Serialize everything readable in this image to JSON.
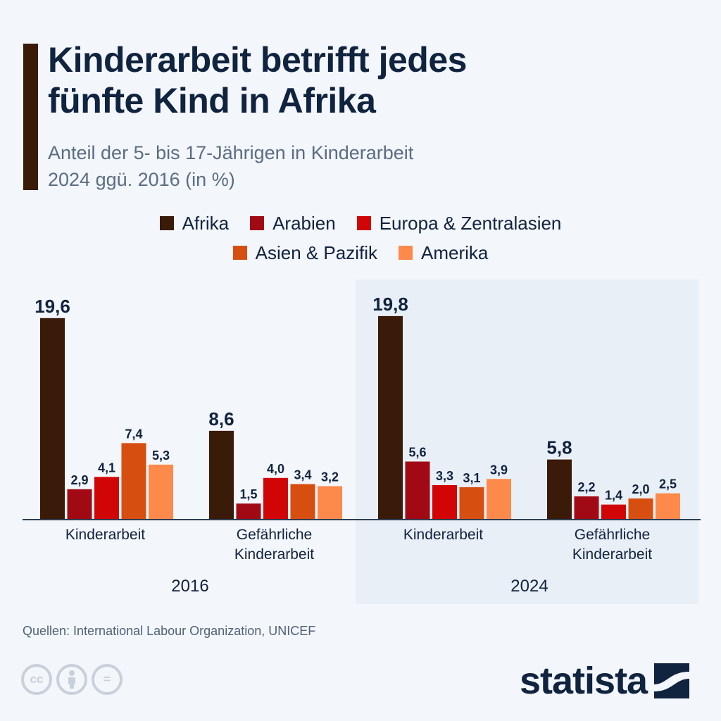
{
  "header": {
    "title_line1": "Kinderarbeit betrifft jedes",
    "title_line2": "fünfte Kind in Afrika",
    "subtitle_line1": "Anteil der 5- bis 17-Jährigen in Kinderarbeit",
    "subtitle_line2": "2024 ggü. 2016 (in %)"
  },
  "legend": [
    {
      "label": "Afrika",
      "color": "#3a1a08"
    },
    {
      "label": "Arabien",
      "color": "#a10a14"
    },
    {
      "label": "Europa & Zentralasien",
      "color": "#d10505"
    },
    {
      "label": "Asien & Pazifik",
      "color": "#d64f10"
    },
    {
      "label": "Amerika",
      "color": "#fd8a4b"
    }
  ],
  "chart_data": {
    "type": "bar",
    "title": "Kinderarbeit betrifft jedes fünfte Kind in Afrika",
    "subtitle": "Anteil der 5- bis 17-Jährigen in Kinderarbeit 2024 ggü. 2016 (in %)",
    "xlabel": "",
    "ylabel": "",
    "ylim": [
      0,
      20
    ],
    "grid": false,
    "legend_position": "top-center",
    "year_groups": [
      "2016",
      "2024"
    ],
    "categories": [
      {
        "label": "Kinderarbeit",
        "year": "2016"
      },
      {
        "label": "Gefährliche Kinderarbeit",
        "year": "2016"
      },
      {
        "label": "Kinderarbeit",
        "year": "2024"
      },
      {
        "label": "Gefährliche Kinderarbeit",
        "year": "2024"
      }
    ],
    "category_label_lines": [
      [
        "Kinderarbeit"
      ],
      [
        "Gefährliche",
        "Kinderarbeit"
      ],
      [
        "Kinderarbeit"
      ],
      [
        "Gefährliche",
        "Kinderarbeit"
      ]
    ],
    "series": [
      {
        "name": "Afrika",
        "color": "#3a1a08",
        "values": [
          19.6,
          8.6,
          19.8,
          5.8
        ],
        "labels": [
          "19,6",
          "8,6",
          "19,8",
          "5,8"
        ]
      },
      {
        "name": "Arabien",
        "color": "#a10a14",
        "values": [
          2.9,
          1.5,
          5.6,
          2.2
        ],
        "labels": [
          "2,9",
          "1,5",
          "5,6",
          "2,2"
        ]
      },
      {
        "name": "Europa & Zentralasien",
        "color": "#d10505",
        "values": [
          4.1,
          4.0,
          3.3,
          1.4
        ],
        "labels": [
          "4,1",
          "4,0",
          "3,3",
          "1,4"
        ]
      },
      {
        "name": "Asien & Pazifik",
        "color": "#d64f10",
        "values": [
          7.4,
          3.4,
          3.1,
          2.0
        ],
        "labels": [
          "7,4",
          "3,4",
          "3,1",
          "2,0"
        ]
      },
      {
        "name": "Amerika",
        "color": "#fd8a4b",
        "values": [
          5.3,
          3.2,
          3.9,
          2.5
        ],
        "labels": [
          "5,3",
          "3,2",
          "3,9",
          "2,5"
        ]
      }
    ]
  },
  "footer": {
    "source": "Quellen: International Labour Organization, UNICEF",
    "license_icons": [
      "cc-icon",
      "attribution-icon",
      "no-derivatives-icon"
    ],
    "cc_label": "cc",
    "nd_label": "=",
    "brand": "statista"
  }
}
